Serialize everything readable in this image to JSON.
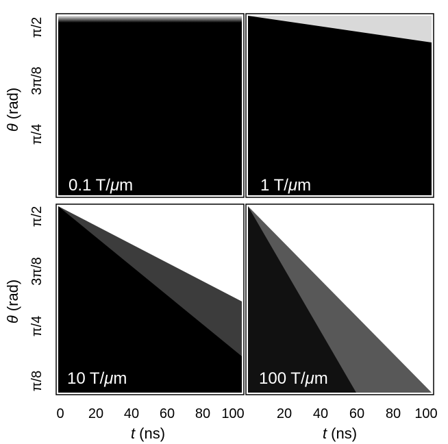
{
  "chart_data": {
    "type": "heatmap",
    "colormap": "gray",
    "xlabel": "t (ns)",
    "xlabel_var": "t",
    "xlabel_unit": " (ns)",
    "ylabel": "θ (rad)",
    "ylabel_var": "θ",
    "ylabel_unit": " (rad)",
    "xlim": [
      0,
      100
    ],
    "ylim_fraction_of_pi": [
      0.0625,
      0.5
    ],
    "x_ticks": [
      0,
      20,
      40,
      60,
      80,
      100
    ],
    "x_tick_labels": [
      "0",
      "20",
      "40",
      "60",
      "80",
      "100"
    ],
    "y_ticks_top_row": [
      {
        "value_fraction_of_pi": 0.5,
        "label": "π/2"
      },
      {
        "value_fraction_of_pi": 0.375,
        "label": "3π/8"
      },
      {
        "value_fraction_of_pi": 0.25,
        "label": "π/4"
      }
    ],
    "y_ticks_bottom_row": [
      {
        "value_fraction_of_pi": 0.5,
        "label": "π/2"
      },
      {
        "value_fraction_of_pi": 0.375,
        "label": "3π/8"
      },
      {
        "value_fraction_of_pi": 0.25,
        "label": "π/4"
      },
      {
        "value_fraction_of_pi": 0.125,
        "label": "π/8"
      }
    ],
    "panels": [
      {
        "label": "0.1 T/μm",
        "label_number": "0.1 T/",
        "label_mu": "μ",
        "label_unit": "m",
        "gradient_T_per_um": 0.1
      },
      {
        "label": "1 T/μm",
        "label_number": "1 T/",
        "label_mu": "μ",
        "label_unit": "m",
        "gradient_T_per_um": 1
      },
      {
        "label": "10 T/μm",
        "label_number": "10 T/",
        "label_mu": "μ",
        "label_unit": "m",
        "gradient_T_per_um": 10
      },
      {
        "label": "100 T/μm",
        "label_number": "100 T/",
        "label_mu": "μ",
        "label_unit": "m",
        "gradient_T_per_um": 100
      }
    ]
  }
}
